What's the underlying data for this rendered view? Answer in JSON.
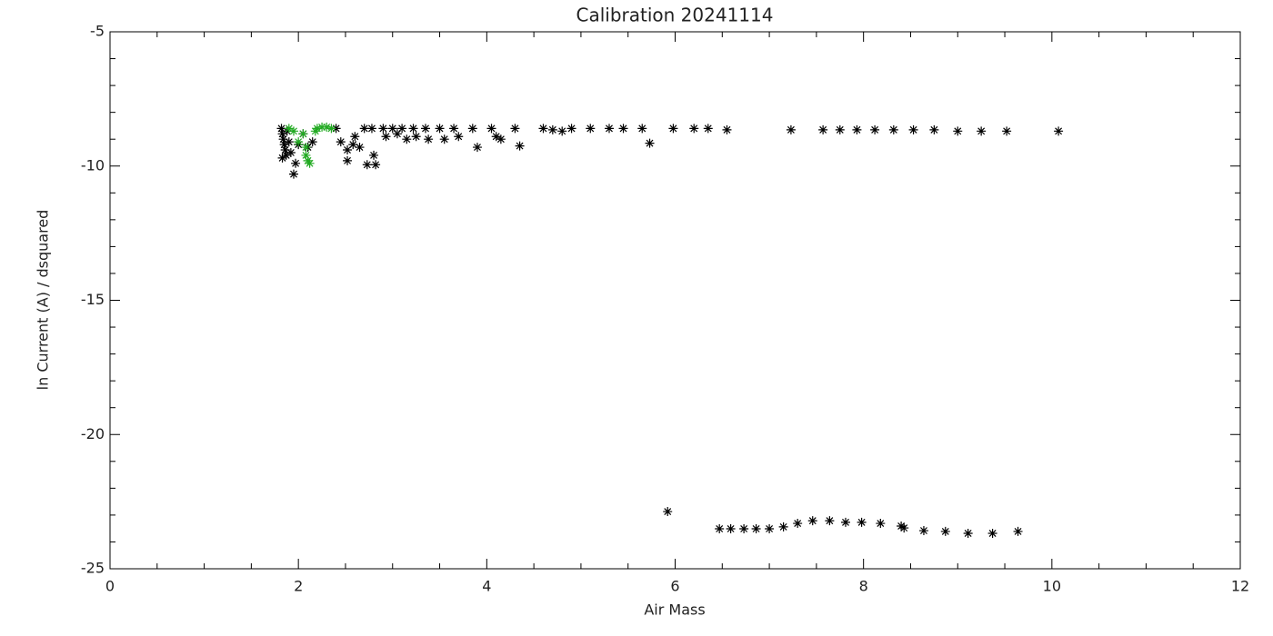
{
  "chart_data": {
    "type": "scatter",
    "title": "Calibration  20241114",
    "x_label": "Air Mass",
    "y_label": "ln Current (A) / dsquared",
    "xlim": [
      0,
      12
    ],
    "xticks": [
      0,
      2,
      4,
      6,
      8,
      10,
      12
    ],
    "ylim": [
      -25,
      -5
    ],
    "yticks": [
      -25,
      -20,
      -15,
      -10,
      -5
    ],
    "series": [
      {
        "color": "#000000",
        "x": [
          1.82,
          1.83,
          1.84,
          1.85,
          1.86,
          1.87,
          1.88,
          1.9,
          1.92,
          1.83,
          1.95,
          1.97,
          2.0,
          2.05,
          2.15,
          2.1,
          2.4,
          2.45,
          2.52,
          2.52,
          2.58,
          2.6,
          2.65,
          2.7,
          2.73,
          2.78,
          2.8,
          2.82,
          2.9,
          2.93,
          3.0,
          3.05,
          3.1,
          3.15,
          3.22,
          3.25,
          3.35,
          3.38,
          3.5,
          3.55,
          3.65,
          3.7,
          3.85,
          3.9,
          4.05,
          4.1,
          4.15,
          4.3,
          4.35,
          4.6,
          4.7,
          4.8,
          4.9,
          5.1,
          5.3,
          5.45,
          5.65,
          5.73,
          5.98,
          6.2,
          6.35,
          6.55,
          7.23,
          7.57,
          7.75,
          7.93,
          8.12,
          8.32,
          8.53,
          8.75,
          9.0,
          9.25,
          9.52,
          10.07,
          5.92,
          6.47,
          6.59,
          6.73,
          6.86,
          7.0,
          7.15,
          7.3,
          7.46,
          7.64,
          7.81,
          7.98,
          8.18,
          8.4,
          8.43,
          8.64,
          8.87,
          9.11,
          9.37,
          9.64
        ],
        "values": [
          -8.6,
          -8.8,
          -9.0,
          -9.2,
          -9.4,
          -9.6,
          -8.7,
          -9.1,
          -9.5,
          -9.7,
          -10.3,
          -9.9,
          -9.2,
          -8.8,
          -9.1,
          -9.3,
          -8.6,
          -9.1,
          -9.4,
          -9.8,
          -9.2,
          -8.9,
          -9.3,
          -8.6,
          -9.95,
          -8.6,
          -9.6,
          -9.95,
          -8.6,
          -8.9,
          -8.6,
          -8.8,
          -8.6,
          -9.0,
          -8.6,
          -8.9,
          -8.6,
          -9.0,
          -8.6,
          -9.0,
          -8.6,
          -8.9,
          -8.6,
          -9.3,
          -8.6,
          -8.9,
          -9.0,
          -8.6,
          -9.25,
          -8.6,
          -8.65,
          -8.7,
          -8.6,
          -8.6,
          -8.6,
          -8.6,
          -8.6,
          -9.15,
          -8.6,
          -8.6,
          -8.6,
          -8.65,
          -8.65,
          -8.65,
          -8.65,
          -8.65,
          -8.65,
          -8.65,
          -8.65,
          -8.65,
          -8.7,
          -8.7,
          -8.7,
          -8.7,
          -22.87,
          -23.51,
          -23.51,
          -23.51,
          -23.51,
          -23.51,
          -23.44,
          -23.31,
          -23.21,
          -23.21,
          -23.27,
          -23.27,
          -23.31,
          -23.41,
          -23.48,
          -23.58,
          -23.61,
          -23.68,
          -23.68,
          -23.61
        ]
      },
      {
        "color": "#22aa22",
        "x": [
          1.9,
          1.95,
          2.0,
          2.05,
          2.08,
          2.1,
          2.12,
          2.18,
          2.2,
          2.25,
          2.3,
          2.35,
          2.08
        ],
        "values": [
          -8.6,
          -8.7,
          -9.1,
          -8.8,
          -9.6,
          -9.8,
          -9.9,
          -8.7,
          -8.6,
          -8.55,
          -8.55,
          -8.6,
          -9.3
        ]
      }
    ]
  }
}
